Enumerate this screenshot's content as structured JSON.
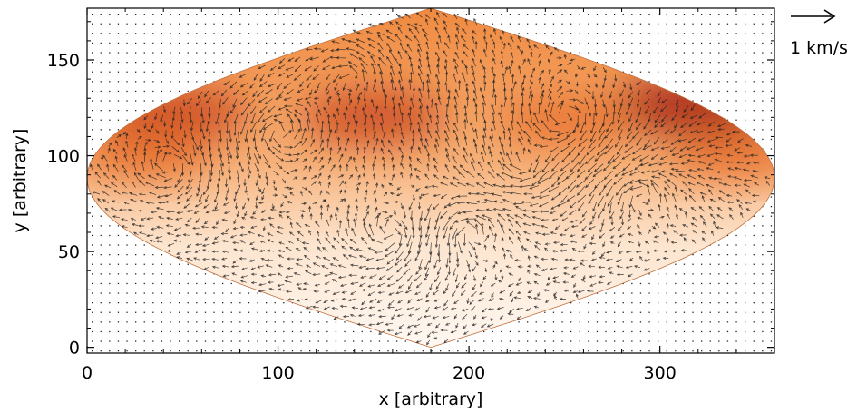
{
  "chart_data": {
    "type": "vector-field",
    "xlabel": "x [arbitrary]",
    "ylabel": "y [arbitrary]",
    "xlim": [
      0,
      360
    ],
    "ylim": [
      -3,
      177
    ],
    "xticks": [
      0,
      100,
      200,
      300
    ],
    "yticks": [
      0,
      50,
      100,
      150
    ],
    "reference_vector": {
      "label": "1 km/s",
      "magnitude_kms": 1
    },
    "colormap": [
      "#fff8f2",
      "#fde2c9",
      "#f9b98a",
      "#f29150",
      "#e76f2a",
      "#c8401a",
      "#a11a0e"
    ],
    "heat_blobs": [
      {
        "x": 320,
        "y": 126,
        "intensity": 1.0
      },
      {
        "x": 45,
        "y": 122,
        "intensity": 0.75
      },
      {
        "x": 150,
        "y": 120,
        "intensity": 0.65
      },
      {
        "x": 250,
        "y": 118,
        "intensity": 0.55
      },
      {
        "x": 30,
        "y": 100,
        "intensity": 0.5
      },
      {
        "x": 340,
        "y": 100,
        "intensity": 0.5
      }
    ],
    "vortices": [
      {
        "x": 100,
        "y": 112,
        "strength": 1.0
      },
      {
        "x": 250,
        "y": 120,
        "strength": -1.0
      },
      {
        "x": 45,
        "y": 95,
        "strength": -0.8
      },
      {
        "x": 200,
        "y": 60,
        "strength": 0.9
      },
      {
        "x": 160,
        "y": 60,
        "strength": -0.9
      },
      {
        "x": 290,
        "y": 80,
        "strength": 0.7
      },
      {
        "x": 140,
        "y": 140,
        "strength": 0.6
      },
      {
        "x": 230,
        "y": 95,
        "strength": -0.6
      }
    ]
  }
}
